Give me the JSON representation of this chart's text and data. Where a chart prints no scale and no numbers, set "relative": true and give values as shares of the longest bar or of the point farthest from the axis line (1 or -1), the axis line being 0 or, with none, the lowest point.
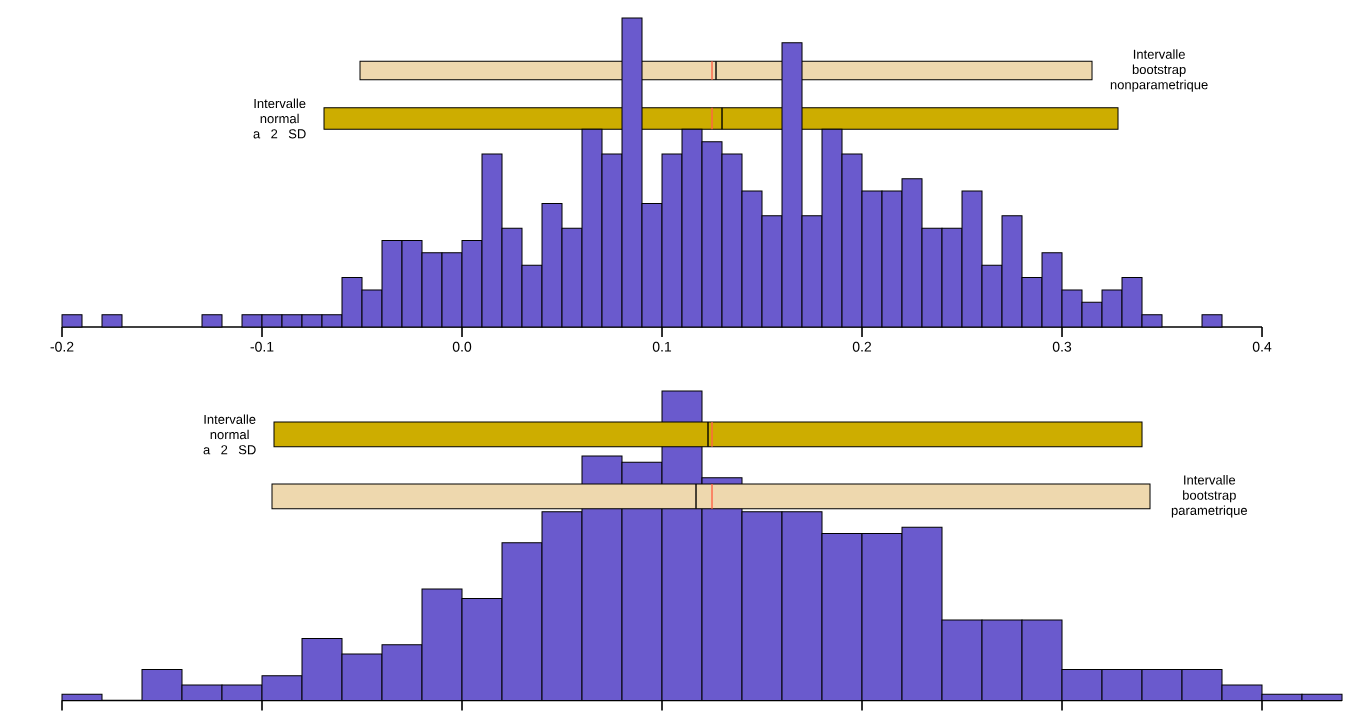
{
  "chart_data": [
    {
      "type": "bar",
      "relative": true,
      "series": [
        {
          "type": "bar",
          "color": "#6a5acd",
          "x": [
            -0.195,
            -0.185,
            -0.175,
            -0.165,
            -0.155,
            -0.145,
            -0.135,
            -0.125,
            -0.115,
            -0.105,
            -0.095,
            -0.085,
            -0.075,
            -0.065,
            -0.055,
            -0.045,
            -0.035,
            -0.025,
            -0.015,
            -0.005,
            0.005,
            0.015,
            0.025,
            0.035,
            0.045,
            0.055,
            0.065,
            0.075,
            0.085,
            0.095,
            0.105,
            0.115,
            0.125,
            0.135,
            0.145,
            0.155,
            0.165,
            0.175,
            0.185,
            0.195,
            0.205,
            0.215,
            0.225,
            0.235,
            0.245,
            0.255,
            0.265,
            0.275,
            0.285,
            0.295,
            0.305,
            0.315,
            0.325,
            0.335,
            0.345,
            0.355,
            0.365,
            0.375
          ],
          "values": [
            0.04,
            0,
            0.04,
            0,
            0,
            0,
            0,
            0.04,
            0,
            0.04,
            0.04,
            0.04,
            0.04,
            0.04,
            0.16,
            0.12,
            0.28,
            0.28,
            0.24,
            0.24,
            0.28,
            0.56,
            0.32,
            0.2,
            0.4,
            0.32,
            0.64,
            0.56,
            1,
            0.4,
            0.56,
            0.64,
            0.6,
            0.56,
            0.44,
            0.36,
            0.92,
            0.36,
            0.64,
            0.56,
            0.44,
            0.44,
            0.48,
            0.32,
            0.32,
            0.44,
            0.2,
            0.36,
            0.16,
            0.24,
            0.12,
            0.08,
            0.12,
            0.16,
            0.04,
            0,
            0,
            0.04
          ]
        },
        {
          "type": "line",
          "color": "#ff6347",
          "x": [
            0.125,
            0.125
          ],
          "values": [
            0.8,
            0.86
          ]
        },
        {
          "type": "line",
          "color": "#ff6347",
          "x": [
            0.125,
            0.125
          ],
          "values": [
            0.64,
            0.71
          ]
        },
        {
          "type": "line",
          "color": "#000000",
          "x": [
            0.127,
            0.127
          ],
          "values": [
            0.8,
            0.86
          ]
        },
        {
          "type": "line",
          "color": "#000000",
          "x": [
            0.13,
            0.13
          ],
          "values": [
            0.64,
            0.71
          ]
        }
      ],
      "xlim": [
        -0.2,
        0.4
      ],
      "xticks": [
        {
          "value": -0.2,
          "label": "-0.2"
        },
        {
          "value": -0.1,
          "label": "-0.1"
        },
        {
          "value": 0,
          "label": "0.0"
        },
        {
          "value": 0.1,
          "label": "0.1"
        },
        {
          "value": 0.2,
          "label": "0.2"
        },
        {
          "value": 0.3,
          "label": "0.3"
        },
        {
          "value": 0.4,
          "label": "0.4"
        }
      ],
      "bands": [
        {
          "axis": "x",
          "from": -0.051,
          "to": 0.315,
          "label": "Intervalle bootstrap nonparametrique",
          "color": "#eed8ae"
        },
        {
          "axis": "x",
          "from": -0.069,
          "to": 0.328,
          "label": "Intervalle normal a 2 SD",
          "color": "#cdad00"
        }
      ]
    },
    {
      "type": "bar",
      "relative": true,
      "series": [
        {
          "type": "bar",
          "color": "#6a5acd",
          "x": [
            -0.19,
            -0.17,
            -0.15,
            -0.13,
            -0.11,
            -0.09,
            -0.07,
            -0.05,
            -0.03,
            -0.01,
            0.01,
            0.03,
            0.05,
            0.07,
            0.09,
            0.11,
            0.13,
            0.15,
            0.17,
            0.19,
            0.21,
            0.23,
            0.25,
            0.27,
            0.29,
            0.31,
            0.33,
            0.35,
            0.37,
            0.39,
            0.41,
            0.43
          ],
          "values": [
            0.02,
            0,
            0.1,
            0.05,
            0.05,
            0.08,
            0.2,
            0.15,
            0.18,
            0.36,
            0.33,
            0.51,
            0.61,
            0.79,
            0.77,
            1,
            0.72,
            0.61,
            0.61,
            0.54,
            0.54,
            0.56,
            0.26,
            0.26,
            0.26,
            0.1,
            0.1,
            0.1,
            0.1,
            0.05,
            0.02,
            0.02
          ]
        },
        {
          "type": "line",
          "color": "#ff6347",
          "x": [
            0.125,
            0.125
          ],
          "values": [
            0.82,
            0.9
          ]
        },
        {
          "type": "line",
          "color": "#ff6347",
          "x": [
            0.125,
            0.125
          ],
          "values": [
            0.62,
            0.7
          ]
        },
        {
          "type": "line",
          "color": "#000000",
          "x": [
            0.123,
            0.123
          ],
          "values": [
            0.82,
            0.9
          ]
        },
        {
          "type": "line",
          "color": "#000000",
          "x": [
            0.117,
            0.117
          ],
          "values": [
            0.62,
            0.7
          ]
        }
      ],
      "xlim": [
        -0.2,
        0.44
      ],
      "xticks": [
        -0.2,
        -0.1,
        0,
        0.1,
        0.2,
        0.3,
        0.4
      ],
      "tick_labels": false,
      "bands": [
        {
          "axis": "x",
          "from": -0.094,
          "to": 0.34,
          "label": "Intervalle normal a 2 SD",
          "color": "#cdad00"
        },
        {
          "axis": "x",
          "from": -0.095,
          "to": 0.344,
          "label": "Intervalle bootstrap parametrique",
          "color": "#eed8ae"
        }
      ]
    }
  ]
}
